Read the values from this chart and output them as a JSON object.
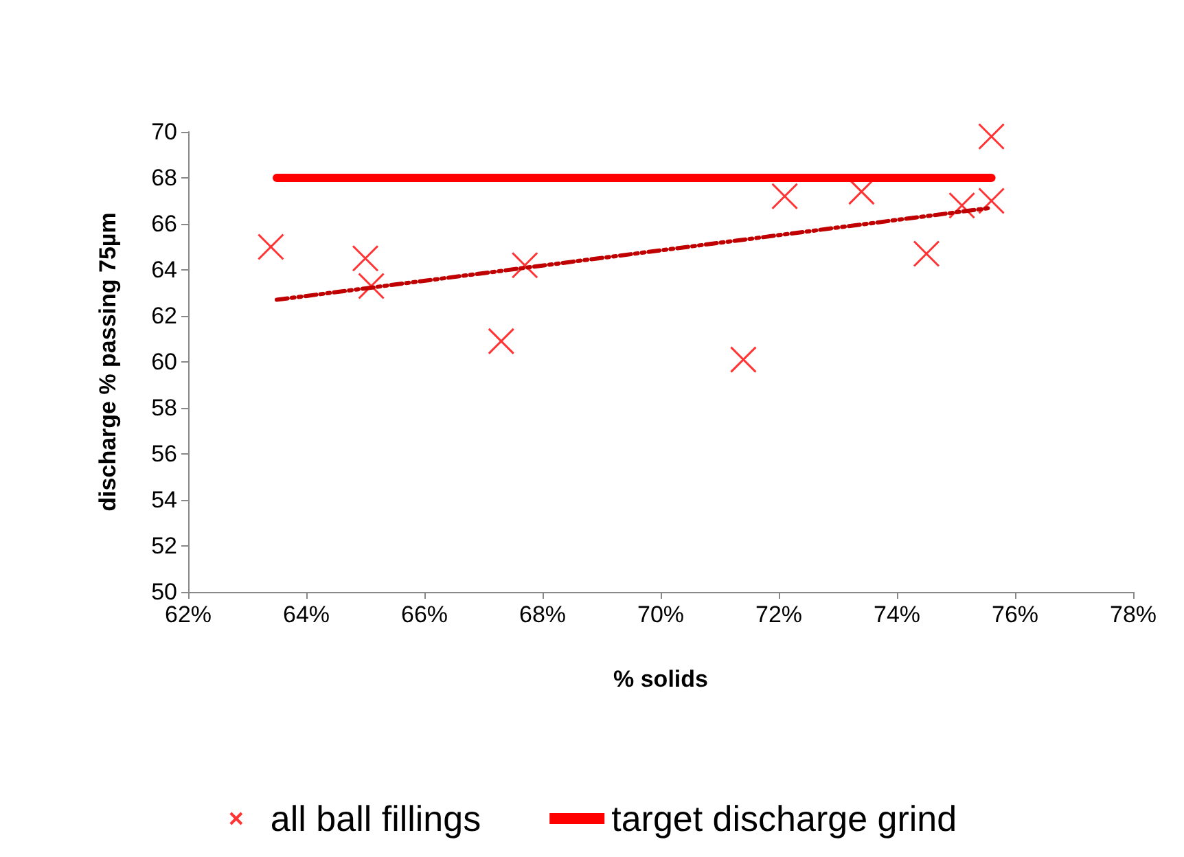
{
  "chart_data": {
    "type": "scatter",
    "xlabel": "% solids",
    "ylabel": "discharge % passing 75µm",
    "xlim": [
      62,
      78
    ],
    "xticks": [
      {
        "value": 62,
        "label": "62%"
      },
      {
        "value": 64,
        "label": "64%"
      },
      {
        "value": 66,
        "label": "66%"
      },
      {
        "value": 68,
        "label": "68%"
      },
      {
        "value": 70,
        "label": "70%"
      },
      {
        "value": 72,
        "label": "72%"
      },
      {
        "value": 74,
        "label": "74%"
      },
      {
        "value": 76,
        "label": "76%"
      },
      {
        "value": 78,
        "label": "78%"
      }
    ],
    "ylim": [
      50,
      70
    ],
    "yticks": [
      50,
      52,
      54,
      56,
      58,
      60,
      62,
      64,
      66,
      68,
      70
    ],
    "grid": false,
    "legend": "bottom",
    "series": [
      {
        "name": "all ball fillings",
        "marker": "cross",
        "color": "#ff0000",
        "x": [
          63.4,
          65.0,
          65.1,
          67.3,
          67.7,
          71.4,
          72.1,
          73.4,
          74.5,
          75.1,
          75.6,
          75.6
        ],
        "values": [
          65.0,
          64.5,
          63.3,
          60.9,
          64.2,
          60.1,
          67.2,
          67.4,
          64.7,
          66.8,
          67.0,
          69.8
        ]
      },
      {
        "name": "target discharge grind",
        "type": "line",
        "marker": "none",
        "line_style": "solid",
        "color": "#ff0000",
        "x": [
          63.5,
          75.6
        ],
        "values": [
          68,
          68
        ]
      },
      {
        "type": "line",
        "marker": "none",
        "line_style": "dashed",
        "color": "#c00000",
        "x": [
          63.5,
          75.6
        ],
        "values": [
          62.7,
          66.7
        ]
      }
    ]
  }
}
